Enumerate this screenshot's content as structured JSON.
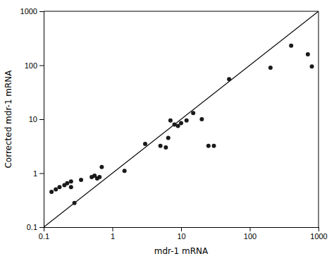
{
  "chart_data": {
    "type": "scatter",
    "xlabel": "mdr-1 mRNA",
    "ylabel": "Corrected mdr-1 mRNA",
    "log": true,
    "xlim": [
      0.1,
      1000.0
    ],
    "ylim": [
      0.1,
      1000.0
    ],
    "xticks": [
      0.1,
      1,
      10,
      100,
      1000
    ],
    "yticks": [
      0.1,
      1,
      10,
      100,
      1000
    ],
    "series": [
      {
        "type": "line",
        "color": "black",
        "x": [
          0.1,
          1000.0
        ],
        "values": [
          0.1,
          1000.0
        ]
      },
      {
        "type": "scatter",
        "color": "#1a1a1a",
        "x": [
          0.13,
          0.15,
          0.17,
          0.2,
          0.22,
          0.25,
          0.25,
          0.28,
          0.35,
          0.5,
          0.55,
          0.6,
          0.65,
          0.7,
          1.5,
          3.0,
          5.0,
          6.0,
          6.5,
          7.0,
          8.0,
          9.0,
          10.0,
          12.0,
          15.0,
          20.0,
          25.0,
          30.0,
          50.0,
          200.0,
          400.0,
          700.0,
          800.0
        ],
        "values": [
          0.45,
          0.5,
          0.55,
          0.6,
          0.65,
          0.55,
          0.7,
          0.28,
          0.75,
          0.85,
          0.9,
          0.8,
          0.85,
          1.3,
          1.1,
          3.5,
          3.2,
          3.0,
          4.5,
          9.5,
          8.0,
          7.5,
          8.5,
          9.5,
          13.0,
          10.0,
          3.2,
          3.2,
          55.0,
          90.0,
          230.0,
          160.0,
          95.0
        ]
      }
    ]
  }
}
